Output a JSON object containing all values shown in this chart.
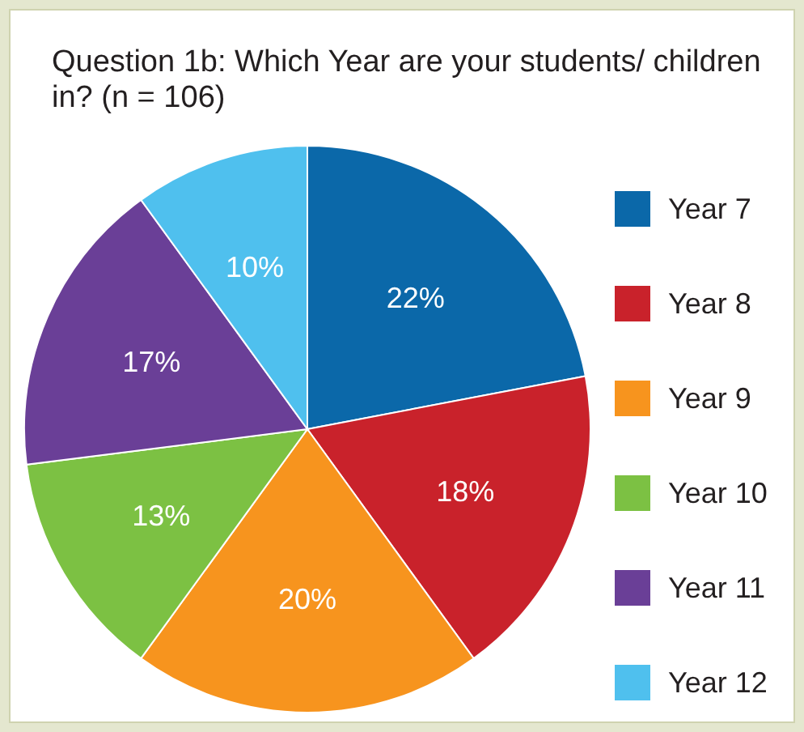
{
  "chart_data": {
    "type": "pie",
    "title": "Question 1b: Which Year are your students/ children in? (n = 106)",
    "categories": [
      "Year 7",
      "Year 8",
      "Year 9",
      "Year 10",
      "Year 11",
      "Year 12"
    ],
    "values": [
      22,
      18,
      20,
      13,
      17,
      10
    ],
    "value_labels": [
      "22%",
      "18%",
      "20%",
      "13%",
      "17%",
      "10%"
    ],
    "colors": [
      "#0b68a9",
      "#c9222b",
      "#f7941e",
      "#7cc143",
      "#6a3f97",
      "#4fc0ee"
    ],
    "legend": "right"
  }
}
